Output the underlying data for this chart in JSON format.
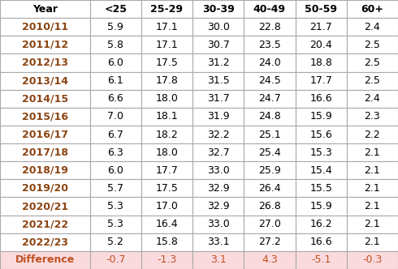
{
  "columns": [
    "Year",
    "<25",
    "25-29",
    "30-39",
    "40-49",
    "50-59",
    "60+"
  ],
  "rows": [
    [
      "2010/11",
      "5.9",
      "17.1",
      "30.0",
      "22.8",
      "21.7",
      "2.4"
    ],
    [
      "2011/12",
      "5.8",
      "17.1",
      "30.7",
      "23.5",
      "20.4",
      "2.5"
    ],
    [
      "2012/13",
      "6.0",
      "17.5",
      "31.2",
      "24.0",
      "18.8",
      "2.5"
    ],
    [
      "2013/14",
      "6.1",
      "17.8",
      "31.5",
      "24.5",
      "17.7",
      "2.5"
    ],
    [
      "2014/15",
      "6.6",
      "18.0",
      "31.7",
      "24.7",
      "16.6",
      "2.4"
    ],
    [
      "2015/16",
      "7.0",
      "18.1",
      "31.9",
      "24.8",
      "15.9",
      "2.3"
    ],
    [
      "2016/17",
      "6.7",
      "18.2",
      "32.2",
      "25.1",
      "15.6",
      "2.2"
    ],
    [
      "2017/18",
      "6.3",
      "18.0",
      "32.7",
      "25.4",
      "15.3",
      "2.1"
    ],
    [
      "2018/19",
      "6.0",
      "17.7",
      "33.0",
      "25.9",
      "15.4",
      "2.1"
    ],
    [
      "2019/20",
      "5.7",
      "17.5",
      "32.9",
      "26.4",
      "15.5",
      "2.1"
    ],
    [
      "2020/21",
      "5.3",
      "17.0",
      "32.9",
      "26.8",
      "15.9",
      "2.1"
    ],
    [
      "2021/22",
      "5.3",
      "16.4",
      "33.0",
      "27.0",
      "16.2",
      "2.1"
    ],
    [
      "2022/23",
      "5.2",
      "15.8",
      "33.1",
      "27.2",
      "16.6",
      "2.1"
    ]
  ],
  "diff_row": [
    "Difference",
    "-0.7",
    "-1.3",
    "3.1",
    "4.3",
    "-5.1",
    "-0.3"
  ],
  "col_widths": [
    1.4,
    0.8,
    0.8,
    0.8,
    0.8,
    0.8,
    0.8
  ],
  "year_text_color": "#8B4513",
  "diff_bg": "#FADADD",
  "diff_text_color": "#C05020",
  "header_bg": "#FFFFFF",
  "data_bg": "#FFFFFF",
  "border_color": "#AAAAAA",
  "font_size": 9,
  "header_font_size": 9,
  "fig_width": 4.9,
  "fig_height": 3.32,
  "dpi": 100
}
